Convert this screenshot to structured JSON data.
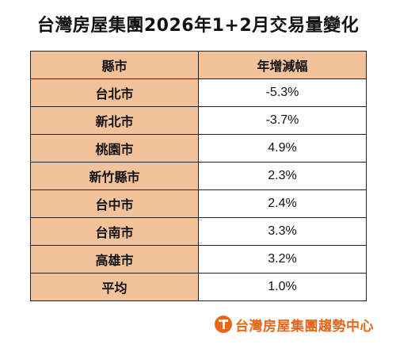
{
  "title": "台灣房屋集團2026年1+2月交易量變化",
  "table": {
    "headers": [
      "縣市",
      "年增減幅"
    ],
    "rows": [
      {
        "county": "台北市",
        "change": "-5.3%"
      },
      {
        "county": "新北市",
        "change": "-3.7%"
      },
      {
        "county": "桃園市",
        "change": "4.9%"
      },
      {
        "county": "新竹縣市",
        "change": "2.3%"
      },
      {
        "county": "台中市",
        "change": "2.4%"
      },
      {
        "county": "台南市",
        "change": "3.3%"
      },
      {
        "county": "高雄市",
        "change": "3.2%"
      },
      {
        "county": "平均",
        "change": "1.0%"
      }
    ]
  },
  "brand": {
    "text": "台灣房屋集團趨勢中心",
    "icon": "taiwan-realty-logo-icon",
    "color": "#e8661a"
  },
  "colors": {
    "header_fill": "#f2c29a",
    "border": "#222222"
  },
  "chart_data": {
    "type": "table",
    "title": "台灣房屋集團2026年1+2月交易量變化",
    "columns": [
      "縣市",
      "年增減幅"
    ],
    "categories": [
      "台北市",
      "新北市",
      "桃園市",
      "新竹縣市",
      "台中市",
      "台南市",
      "高雄市",
      "平均"
    ],
    "values": [
      -5.3,
      -3.7,
      4.9,
      2.3,
      2.4,
      3.3,
      3.2,
      1.0
    ],
    "unit": "%"
  }
}
